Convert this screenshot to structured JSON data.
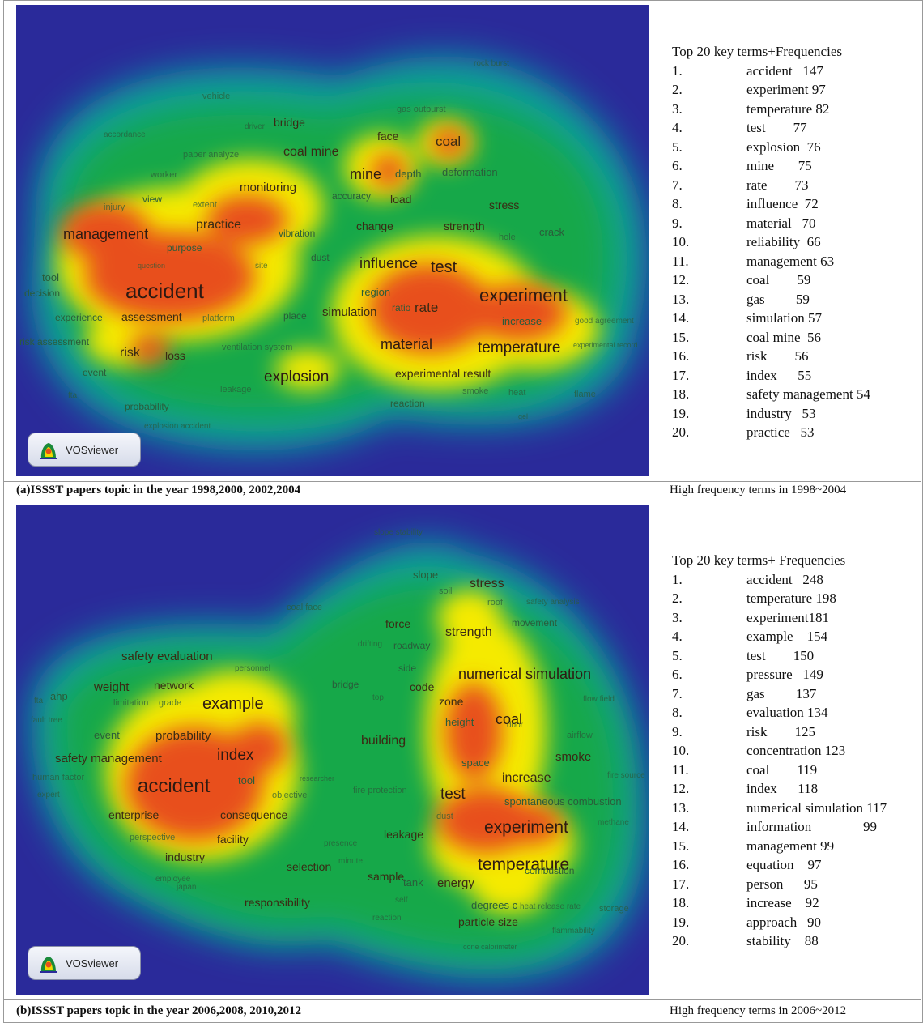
{
  "colors": {
    "background": "#2a2a9a",
    "low": "#18a84a",
    "mid": "#f5ea00",
    "high": "#e8501a"
  },
  "panel_a": {
    "caption": "(a)ISSST papers topic in the year 1998,2000, 2002,2004",
    "side_caption": "High frequency terms in 1998~2004",
    "logo_text": "VOSviewer",
    "list_title": "Top 20 key terms+Frequencies",
    "terms": [
      {
        "num": "1.",
        "label": "accident   147"
      },
      {
        "num": "2.",
        "label": "experiment 97"
      },
      {
        "num": "3.",
        "label": "temperature 82"
      },
      {
        "num": "4.",
        "label": "test        77"
      },
      {
        "num": "5.",
        "label": "explosion  76"
      },
      {
        "num": "6.",
        "label": "mine       75"
      },
      {
        "num": "7.",
        "label": "rate        73"
      },
      {
        "num": "8.",
        "label": "influence  72"
      },
      {
        "num": "9.",
        "label": "material   70"
      },
      {
        "num": "10.",
        "label": "reliability  66"
      },
      {
        "num": "11.",
        "label": "management 63"
      },
      {
        "num": "12.",
        "label": "coal        59"
      },
      {
        "num": "13.",
        "label": "gas         59"
      },
      {
        "num": "14.",
        "label": "simulation 57"
      },
      {
        "num": "15.",
        "label": "coal mine  56"
      },
      {
        "num": "16.",
        "label": "risk        56"
      },
      {
        "num": "17.",
        "label": "index      55"
      },
      {
        "num": "18.",
        "label": "safety management 54"
      },
      {
        "num": "19.",
        "label": "industry   53"
      },
      {
        "num": "20.",
        "label": "practice   53"
      }
    ],
    "map_terms": [
      "rock burst",
      "vehicle",
      "gas outburst",
      "bridge",
      "driver",
      "accordance",
      "face",
      "coal",
      "paper analyze",
      "coal mine",
      "mine",
      "depth",
      "deformation",
      "worker",
      "monitoring",
      "accuracy",
      "load",
      "view",
      "extent",
      "injury",
      "stress",
      "practice",
      "change",
      "strength",
      "management",
      "vibration",
      "hole",
      "crack",
      "purpose",
      "dust",
      "influence",
      "test",
      "question",
      "site",
      "tool",
      "accident",
      "region",
      "decision",
      "experiment",
      "simulation",
      "ratio",
      "rate",
      "experience",
      "assessment",
      "platform",
      "place",
      "increase",
      "good agreement",
      "risk assessment",
      "material",
      "temperature",
      "experimental record",
      "risk",
      "loss",
      "ventilation system",
      "event",
      "explosion",
      "experimental result",
      "leakage",
      "fta",
      "heat",
      "smoke",
      "flame",
      "probability",
      "reaction",
      "gel",
      "explosion accident"
    ]
  },
  "panel_b": {
    "caption": "(b)ISSST papers topic in the year 2006,2008, 2010,2012",
    "side_caption": "High frequency terms in 2006~2012",
    "logo_text": "VOSviewer",
    "list_title": "Top 20 key terms+ Frequencies",
    "terms": [
      {
        "num": "1.",
        "label": "accident   248"
      },
      {
        "num": "2.",
        "label": "temperature 198"
      },
      {
        "num": "3.",
        "label": "experiment181"
      },
      {
        "num": "4.",
        "label": "example    154"
      },
      {
        "num": "5.",
        "label": "test        150"
      },
      {
        "num": "6.",
        "label": "pressure   149"
      },
      {
        "num": "7.",
        "label": "gas         137"
      },
      {
        "num": "8.",
        "label": "evaluation 134"
      },
      {
        "num": "9.",
        "label": "risk        125"
      },
      {
        "num": "10.",
        "label": "concentration 123"
      },
      {
        "num": "11.",
        "label": "coal        119"
      },
      {
        "num": "12.",
        "label": "index      118"
      },
      {
        "num": "13.",
        "label": "numerical simulation 117"
      },
      {
        "num": "14.",
        "label": "information               99"
      },
      {
        "num": "15.",
        "label": "management 99"
      },
      {
        "num": "16.",
        "label": "equation    97"
      },
      {
        "num": "17.",
        "label": "person      95"
      },
      {
        "num": "18.",
        "label": "increase    92"
      },
      {
        "num": "19.",
        "label": "approach   90"
      },
      {
        "num": "20.",
        "label": "stability    88"
      }
    ],
    "map_terms": [
      "slope stability",
      "slope",
      "soil",
      "stress",
      "coal face",
      "roof",
      "safety analysis",
      "movement",
      "force",
      "strength",
      "drifting",
      "roadway",
      "safety evaluation",
      "personnel",
      "side",
      "weight",
      "network",
      "bridge",
      "code",
      "numerical simulation",
      "ahp",
      "top",
      "fta",
      "limitation",
      "grade",
      "example",
      "zone",
      "flow field",
      "fault tree",
      "height",
      "coal",
      "event",
      "probability",
      "building",
      "airflow",
      "door",
      "safety management",
      "index",
      "smoke",
      "space",
      "human factor",
      "tool",
      "researcher",
      "increase",
      "fire source",
      "accident",
      "expert",
      "objective",
      "fire protection",
      "test",
      "spontaneous combustion",
      "enterprise",
      "consequence",
      "dust",
      "methane",
      "perspective",
      "facility",
      "experiment",
      "presence",
      "leakage",
      "industry",
      "minute",
      "temperature",
      "employee",
      "sample",
      "selection",
      "japan",
      "tank",
      "energy",
      "combustion",
      "responsibility",
      "self",
      "degrees c",
      "heat release rate",
      "storage",
      "reaction",
      "particle size",
      "flammability",
      "cone calorimeter"
    ]
  }
}
